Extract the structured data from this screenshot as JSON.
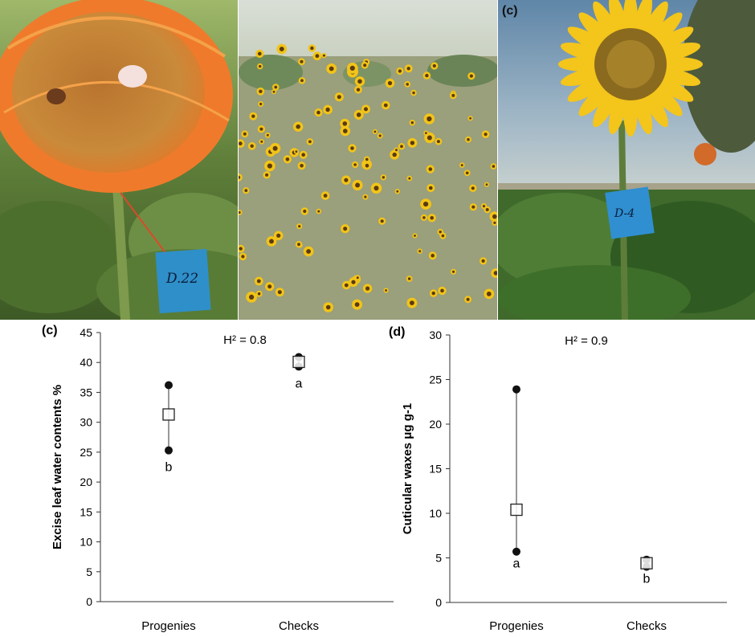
{
  "photos": {
    "panel1": {
      "tag_text": "D.22"
    },
    "panel2": {},
    "panel3": {
      "label": "(c)",
      "tag_text": "D-4"
    }
  },
  "colors": {
    "marker_fill": "#111111",
    "mean_box_stroke": "#222222",
    "axis": "#333333"
  },
  "chart_data": [
    {
      "panel_label": "(c)",
      "type": "scatter",
      "title": "",
      "annotation": "H² = 0.8",
      "ylabel": "Excise leaf water contents %",
      "xlabel": "",
      "categories": [
        "Progenies",
        "Checks"
      ],
      "ylim": [
        0,
        45
      ],
      "yticks": [
        0,
        5,
        10,
        15,
        20,
        25,
        30,
        35,
        40,
        45
      ],
      "ytick_labels": [
        "0",
        "5",
        "10",
        "15",
        "20",
        "25",
        "30",
        "35",
        "40",
        "45"
      ],
      "series": [
        {
          "category": "Progenies",
          "min": 25.3,
          "mean": 31.3,
          "max": 36.2,
          "letter": "b"
        },
        {
          "category": "Checks",
          "min": 39.3,
          "mean": 40.1,
          "max": 40.9,
          "letter": "a"
        }
      ],
      "grid": false
    },
    {
      "panel_label": "(d)",
      "type": "scatter",
      "title": "",
      "annotation": "H² = 0.9",
      "ylabel": "Cuticular waxes μg g-1",
      "xlabel": "",
      "categories": [
        "Progenies",
        "Checks"
      ],
      "ylim": [
        0,
        30
      ],
      "yticks": [
        0,
        5,
        10,
        15,
        20,
        25,
        30
      ],
      "ytick_labels": [
        "0",
        "5",
        "10",
        "15",
        "20",
        "25",
        "30"
      ],
      "series": [
        {
          "category": "Progenies",
          "min": 5.7,
          "mean": 10.4,
          "max": 23.9,
          "letter": "a"
        },
        {
          "category": "Checks",
          "min": 4.0,
          "mean": 4.4,
          "max": 4.8,
          "letter": "b"
        }
      ],
      "grid": false
    }
  ]
}
